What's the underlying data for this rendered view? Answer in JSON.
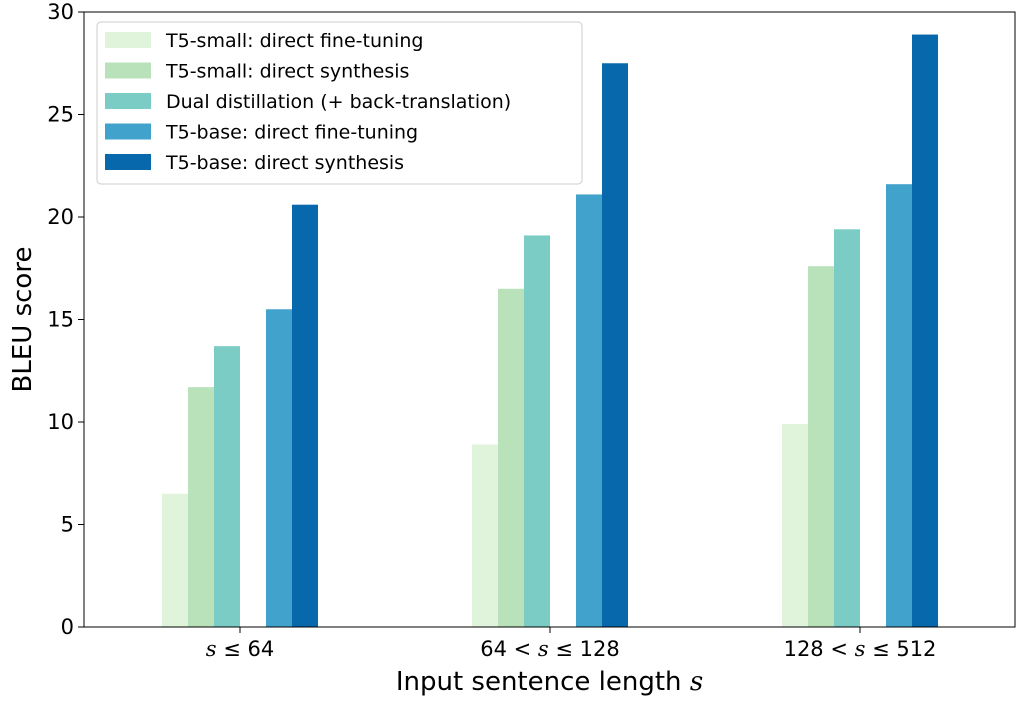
{
  "chart_data": {
    "type": "bar",
    "categories": [
      "s ≤ 64",
      "64 < s ≤ 128",
      "128 < s ≤ 512"
    ],
    "series": [
      {
        "name": "T5-small: direct fine-tuning",
        "color": "#e0f3db",
        "values": [
          6.5,
          8.9,
          9.9
        ],
        "slot": 0
      },
      {
        "name": "T5-small: direct synthesis",
        "color": "#b9e2bb",
        "values": [
          11.7,
          16.5,
          17.6
        ],
        "slot": 1
      },
      {
        "name": "Dual distillation (+ back-translation)",
        "color": "#7bccc4",
        "values": [
          13.7,
          19.1,
          19.4
        ],
        "slot": 2
      },
      {
        "name": "T5-base: direct fine-tuning",
        "color": "#41a2cb",
        "values": [
          15.5,
          21.1,
          21.6
        ],
        "slot": 4
      },
      {
        "name": "T5-base: direct synthesis",
        "color": "#0868ac",
        "values": [
          20.6,
          27.5,
          28.9
        ],
        "slot": 5
      }
    ],
    "xlabel": "Input sentence length s",
    "ylabel": "BLEU score",
    "ylim": [
      0,
      30
    ],
    "yticks": [
      0,
      5,
      10,
      15,
      20,
      25,
      30
    ],
    "grid": false,
    "legend": "upper-left"
  }
}
